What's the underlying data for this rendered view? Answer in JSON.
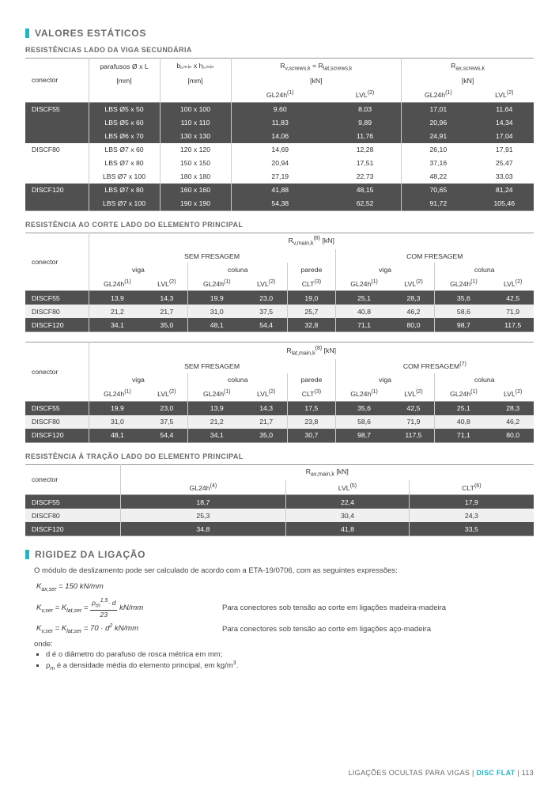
{
  "section1": {
    "title": "VALORES ESTÁTICOS"
  },
  "sub1": "RESISTÊNCIAS LADO DA VIGA SECUNDÁRIA",
  "t1": {
    "h_conn": "conector",
    "h_par": "parafusos Ø x L",
    "h_par_u": "[mm]",
    "h_bj": "bⱼ,ₘᵢₙ x hⱼ,ₘᵢₙ",
    "h_bj_u": "[mm]",
    "h_rv": "R",
    "h_rv_sub": "v,screws,k",
    "h_rv_eq": " = R",
    "h_rv_sub2": "lat,screws,k",
    "h_kn": "[kN]",
    "h_rax": "R",
    "h_rax_sub": "ax,screws,k",
    "h_gl": "GL24h",
    "h_lvl": "LVL",
    "rows": [
      {
        "c": "DISCF55",
        "p": "LBS Ø5 x 50",
        "b": "100 x 100",
        "g1": "9,60",
        "l1": "8,03",
        "g2": "17,01",
        "l2": "11,64",
        "band": "dark"
      },
      {
        "c": "",
        "p": "LBS Ø5 x 60",
        "b": "110 x 110",
        "g1": "11,83",
        "l1": "9,89",
        "g2": "20,96",
        "l2": "14,34",
        "band": "dark"
      },
      {
        "c": "",
        "p": "LBS Ø6 x 70",
        "b": "130 x 130",
        "g1": "14,06",
        "l1": "11,76",
        "g2": "24,91",
        "l2": "17,04",
        "band": "dark"
      },
      {
        "c": "DISCF80",
        "p": "LBS Ø7 x 60",
        "b": "120 x 120",
        "g1": "14,69",
        "l1": "12,28",
        "g2": "26,10",
        "l2": "17,91",
        "band": ""
      },
      {
        "c": "",
        "p": "LBS Ø7 x 80",
        "b": "150 x 150",
        "g1": "20,94",
        "l1": "17,51",
        "g2": "37,16",
        "l2": "25,47",
        "band": ""
      },
      {
        "c": "",
        "p": "LBS Ø7 x 100",
        "b": "180 x 180",
        "g1": "27,19",
        "l1": "22,73",
        "g2": "48,22",
        "l2": "33,03",
        "band": ""
      },
      {
        "c": "DISCF120",
        "p": "LBS Ø7 x 80",
        "b": "160 x 160",
        "g1": "41,88",
        "l1": "48,15",
        "g2": "70,65",
        "l2": "81,24",
        "band": "dark"
      },
      {
        "c": "",
        "p": "LBS Ø7 x 100",
        "b": "190 x 190",
        "g1": "54,38",
        "l1": "62,52",
        "g2": "91,72",
        "l2": "105,46",
        "band": "dark"
      }
    ]
  },
  "sub2": "RESISTÊNCIA AO CORTE LADO DO ELEMENTO PRINCIPAL",
  "t2": {
    "h_conn": "conector",
    "h_mid": "R",
    "h_mid_sub": "v,main,k",
    "h_mid_sup": "(8)",
    "h_mid_u": " [kN]",
    "h_sf": "SEM FRESAGEM",
    "h_cf": "COM FRESAGEM",
    "h_viga": "viga",
    "h_col": "coluna",
    "h_par": "parede",
    "h_gl": "GL24h",
    "h_lvl": "LVL",
    "h_clt": "CLT",
    "rows": [
      {
        "c": "DISCF55",
        "v": [
          "13,9",
          "14,3",
          "19,9",
          "23,0",
          "19,0",
          "25,1",
          "28,3",
          "35,6",
          "42,5"
        ],
        "band": "dark"
      },
      {
        "c": "DISCF80",
        "v": [
          "21,2",
          "21,7",
          "31,0",
          "37,5",
          "25,7",
          "40,8",
          "46,2",
          "58,6",
          "71,9"
        ],
        "band": "mid"
      },
      {
        "c": "DISCF120",
        "v": [
          "34,1",
          "35,0",
          "48,1",
          "54,4",
          "32,8",
          "71,1",
          "80,0",
          "98,7",
          "117,5"
        ],
        "band": "dark"
      }
    ]
  },
  "t3": {
    "h_mid": "R",
    "h_mid_sub": "lat,main,k",
    "h_mid_sup": "(8)",
    "h_mid_u": " [kN]",
    "h_sf": "SEM FRESAGEM",
    "h_cf": "COM FRESAGEM",
    "h_cf_sup": "(7)",
    "h_viga": "viga",
    "h_col": "coluna",
    "h_par": "parede",
    "rows": [
      {
        "c": "DISCF55",
        "v": [
          "19,9",
          "23,0",
          "13,9",
          "14,3",
          "17,5",
          "35,6",
          "42,5",
          "25,1",
          "28,3"
        ],
        "band": "dark"
      },
      {
        "c": "DISCF80",
        "v": [
          "31,0",
          "37,5",
          "21,2",
          "21,7",
          "23,8",
          "58,6",
          "71,9",
          "40,8",
          "46,2"
        ],
        "band": "mid"
      },
      {
        "c": "DISCF120",
        "v": [
          "48,1",
          "54,4",
          "34,1",
          "35,0",
          "30,7",
          "98,7",
          "117,5",
          "71,1",
          "80,0"
        ],
        "band": "dark"
      }
    ]
  },
  "sub3": "RESISTÊNCIA À TRAÇÃO LADO DO ELEMENTO PRINCIPAL",
  "t4": {
    "h_conn": "conector",
    "h_mid": "R",
    "h_mid_sub": "ax,main,k",
    "h_mid_u": " [kN]",
    "h_gl": "GL24h",
    "h_lvl": "LVL",
    "h_clt": "CLT",
    "rows": [
      {
        "c": "DISCF55",
        "v": [
          "18,7",
          "22,4",
          "17,9"
        ],
        "band": "dark"
      },
      {
        "c": "DISCF80",
        "v": [
          "25,3",
          "30,4",
          "24,3"
        ],
        "band": "mid"
      },
      {
        "c": "DISCF120",
        "v": [
          "34,8",
          "41,8",
          "33,5"
        ],
        "band": "dark"
      }
    ]
  },
  "section2": {
    "title": "RIGIDEZ DA LIGAÇÃO"
  },
  "intro": "O módulo de deslizamento pode ser calculado de acordo com a ETA-19/0706, com as seguintes expressões:",
  "eq1": "K",
  "eq1_sub": "ax,ser",
  "eq1_rhs": " = 150 kN/mm",
  "eq2_lhs": "K",
  "eq2_lhs_sub": "v,ser",
  "eq2_eq": " = K",
  "eq2_eq_sub": "lat,ser",
  "eq2_rhs_pre": " = ",
  "eq2_num": "ρ",
  "eq2_num_sub": "m",
  "eq2_num_sup": "1,5",
  "eq2_num_d": "· d",
  "eq2_den": "23",
  "eq2_unit": " kN/mm",
  "eq2_desc": "Para conectores sob tensão ao corte em ligações madeira-madeira",
  "eq3_lhs": "K",
  "eq3_lhs_sub": "v,ser",
  "eq3_eq": " = K",
  "eq3_eq_sub": "lat,ser",
  "eq3_rhs": " = 70 · d",
  "eq3_sup": "2",
  "eq3_unit": " kN/mm",
  "eq3_desc": "Para conectores sob tensão ao corte em ligações aço-madeira",
  "where": "onde:",
  "def1": "d é o diâmetro do parafuso de rosca métrica em mm;",
  "def2_a": "ρ",
  "def2_sub": "m",
  "def2_b": " é a densidade média do elemento principal, em kg/m",
  "def2_sup": "3",
  "def2_c": ".",
  "footer_a": "LIGAÇÕES OCULTAS PARA VIGAS  |  ",
  "footer_b": "DISC FLAT",
  "footer_c": "  |  113"
}
